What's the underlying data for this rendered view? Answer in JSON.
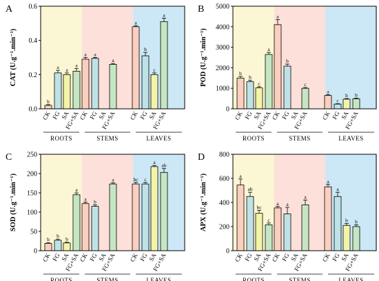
{
  "chart_data": [
    {
      "type": "bar",
      "panel_label": "A",
      "ylabel": "CAT (U.g⁻¹.min⁻¹)",
      "ylim": [
        0,
        0.6
      ],
      "yticks": [
        "0.0",
        "0.2",
        "0.4",
        "0.6"
      ],
      "ytick_values": [
        0,
        0.2,
        0.4,
        0.6
      ],
      "groups": [
        {
          "name": "ROOTS",
          "categories": [
            "CK",
            "FG",
            "SA",
            "FG+SA"
          ],
          "values": [
            0.02,
            0.21,
            0.2,
            0.22
          ],
          "errors": [
            0.005,
            0.015,
            0.01,
            0.015
          ],
          "letters": [
            "b",
            "a",
            "a",
            "a"
          ]
        },
        {
          "name": "STEMS",
          "categories": [
            "CK",
            "FG",
            "SA",
            "FG+SA"
          ],
          "values": [
            0.29,
            0.295,
            null,
            0.26
          ],
          "errors": [
            0.01,
            0.005,
            0,
            0.005
          ],
          "letters": [
            "a",
            "a",
            "",
            "a"
          ]
        },
        {
          "name": "LEAVES",
          "categories": [
            "CK",
            "FG",
            "SA",
            "FG+SA"
          ],
          "values": [
            0.48,
            0.31,
            0.2,
            0.51
          ],
          "errors": [
            0.005,
            0.02,
            0.01,
            0.02
          ],
          "letters": [
            "a",
            "b",
            "c",
            "a"
          ]
        }
      ]
    },
    {
      "type": "bar",
      "panel_label": "B",
      "ylabel": "POD (U.g⁻¹.min⁻¹)",
      "ylim": [
        0,
        5000
      ],
      "yticks": [
        "0",
        "1000",
        "2000",
        "3000",
        "4000",
        "5000"
      ],
      "ytick_values": [
        0,
        1000,
        2000,
        3000,
        4000,
        5000
      ],
      "groups": [
        {
          "name": "ROOTS",
          "categories": [
            "CK",
            "FG",
            "SA",
            "FG+SA"
          ],
          "values": [
            1500,
            1320,
            1020,
            2650
          ],
          "errors": [
            80,
            70,
            60,
            100
          ],
          "letters": [
            "b",
            "b",
            "c",
            "a"
          ]
        },
        {
          "name": "STEMS",
          "categories": [
            "CK",
            "FG",
            "SA",
            "FG+SA"
          ],
          "values": [
            4100,
            2080,
            null,
            1000
          ],
          "errors": [
            250,
            100,
            0,
            40
          ],
          "letters": [
            "a",
            "b",
            "",
            "c"
          ]
        },
        {
          "name": "LEAVES",
          "categories": [
            "CK",
            "FG",
            "SA",
            "FG+SA"
          ],
          "values": [
            650,
            230,
            470,
            490
          ],
          "errors": [
            40,
            20,
            30,
            30
          ],
          "letters": [
            "a",
            "c",
            "b",
            "b"
          ]
        }
      ]
    },
    {
      "type": "bar",
      "panel_label": "C",
      "ylabel": "SOD (U.g⁻¹.min⁻¹)",
      "ylim": [
        0,
        250
      ],
      "yticks": [
        "0",
        "50",
        "100",
        "150",
        "200",
        "250"
      ],
      "ytick_values": [
        0,
        50,
        100,
        150,
        200,
        250
      ],
      "groups": [
        {
          "name": "ROOTS",
          "categories": [
            "CK",
            "FG",
            "SA",
            "FG+SA"
          ],
          "values": [
            19,
            27,
            20,
            145
          ],
          "errors": [
            2,
            3,
            2,
            5
          ],
          "letters": [
            "b",
            "b",
            "b",
            "a"
          ]
        },
        {
          "name": "STEMS",
          "categories": [
            "CK",
            "FG",
            "SA",
            "FG+SA"
          ],
          "values": [
            122,
            115,
            null,
            173
          ],
          "errors": [
            4,
            4,
            0,
            3
          ],
          "letters": [
            "a",
            "b",
            "",
            "a"
          ]
        },
        {
          "name": "LEAVES",
          "categories": [
            "CK",
            "FG",
            "SA",
            "FG+SA"
          ],
          "values": [
            173,
            173,
            218,
            203
          ],
          "errors": [
            4,
            4,
            3,
            10
          ],
          "letters": [
            "bc",
            "c",
            "a",
            "ab"
          ]
        }
      ]
    },
    {
      "type": "bar",
      "panel_label": "D",
      "ylabel": "APX (U.g⁻¹.min⁻¹)",
      "ylim": [
        0,
        800
      ],
      "yticks": [
        "0",
        "200",
        "400",
        "600",
        "800"
      ],
      "ytick_values": [
        0,
        200,
        400,
        600,
        800
      ],
      "groups": [
        {
          "name": "ROOTS",
          "categories": [
            "CK",
            "FG",
            "SA",
            "FG+SA"
          ],
          "values": [
            545,
            450,
            310,
            215
          ],
          "errors": [
            50,
            35,
            25,
            15
          ],
          "letters": [
            "a",
            "ab",
            "bc",
            "c"
          ]
        },
        {
          "name": "STEMS",
          "categories": [
            "CK",
            "FG",
            "SA",
            "FG+SA"
          ],
          "values": [
            355,
            305,
            null,
            380
          ],
          "errors": [
            12,
            55,
            0,
            40
          ],
          "letters": [
            "a",
            "a",
            "",
            "a"
          ]
        },
        {
          "name": "LEAVES",
          "categories": [
            "CK",
            "FG",
            "SA",
            "FG+SA"
          ],
          "values": [
            530,
            450,
            210,
            200
          ],
          "errors": [
            20,
            35,
            15,
            15
          ],
          "letters": [
            "a",
            "a",
            "b",
            "b"
          ]
        }
      ]
    }
  ],
  "colors": {
    "bars": [
      "#fbcfbf",
      "#bfe2e6",
      "#f4f4a8",
      "#c5e6c2"
    ],
    "regions": [
      "#fbf6d4",
      "#fde0da",
      "#cce8f6"
    ]
  }
}
